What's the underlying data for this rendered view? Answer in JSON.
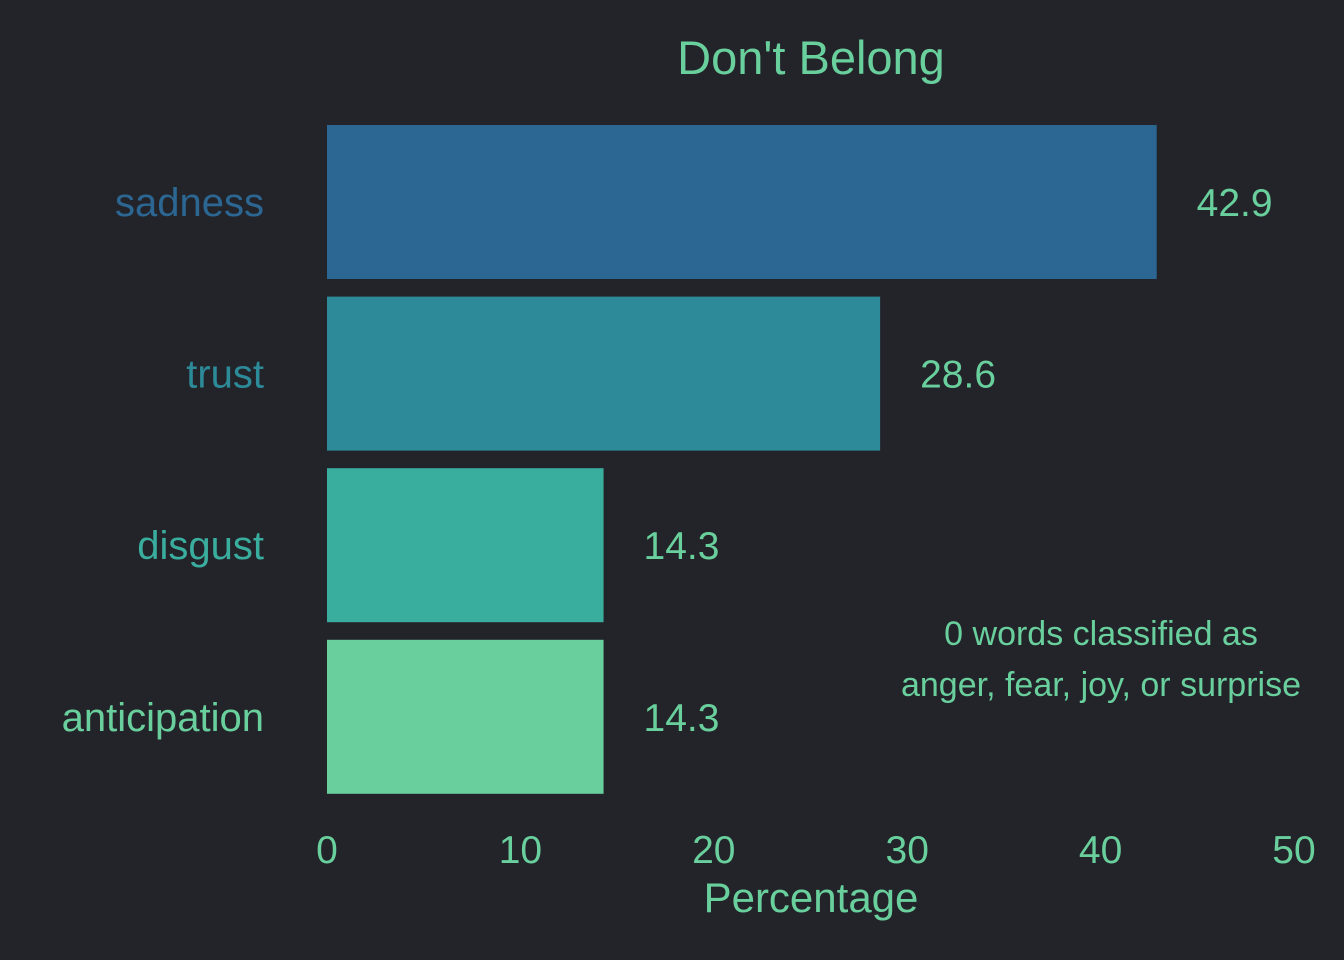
{
  "chart_data": {
    "type": "bar",
    "orientation": "horizontal",
    "title": "Don't Belong",
    "xlabel": "Percentage",
    "ylabel": "",
    "xlim": [
      0,
      50
    ],
    "xticks": [
      "0",
      "10",
      "20",
      "30",
      "40",
      "50"
    ],
    "grid": false,
    "categories": [
      "sadness",
      "trust",
      "disgust",
      "anticipation"
    ],
    "values": [
      42.9,
      28.6,
      14.3,
      14.3
    ],
    "value_labels": [
      "42.9",
      "28.6",
      "14.3",
      "14.3"
    ],
    "bar_colors": [
      "#2b6792",
      "#2c8a99",
      "#3aae9e",
      "#69d09d"
    ],
    "text_color": "#69d09d",
    "background": "#23242a",
    "annotation": {
      "line1": "0 words classified as",
      "line2": "anger, fear, joy, or surprise"
    }
  }
}
